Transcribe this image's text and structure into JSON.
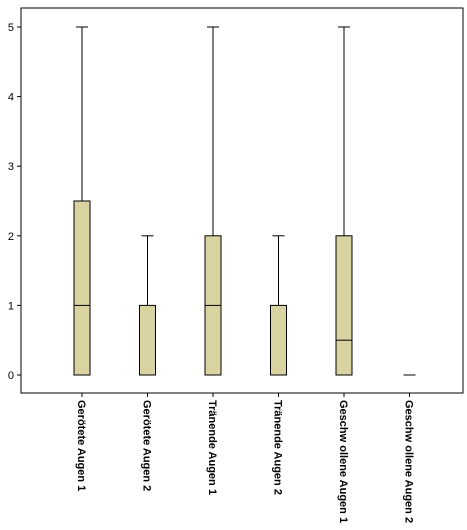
{
  "chart_data": {
    "type": "boxplot",
    "title": "",
    "xlabel": "",
    "ylabel": "",
    "ylim": [
      0,
      5
    ],
    "yticks": [
      "0",
      "1",
      "2",
      "3",
      "4",
      "5"
    ],
    "grid": false,
    "box_fill": "#d9d3a2",
    "categories": [
      "Gerötete Augen 1",
      "Gerötete Augen 2",
      "Tränende Augen 1",
      "Tränende Augen 2",
      "Geschw ollene Augen 1",
      "Geschw ollene Augen 2"
    ],
    "boxes": [
      {
        "min": 0,
        "q1": 0,
        "median": 1,
        "q3": 2.5,
        "max": 5
      },
      {
        "min": 0,
        "q1": 0,
        "median": 0,
        "q3": 1,
        "max": 2
      },
      {
        "min": 0,
        "q1": 0,
        "median": 1,
        "q3": 2,
        "max": 5
      },
      {
        "min": 0,
        "q1": 0,
        "median": 0,
        "q3": 1,
        "max": 2
      },
      {
        "min": 0,
        "q1": 0,
        "median": 0.5,
        "q3": 2,
        "max": 5
      },
      {
        "min": 0,
        "q1": 0,
        "median": 0,
        "q3": 0,
        "max": 0
      }
    ]
  }
}
